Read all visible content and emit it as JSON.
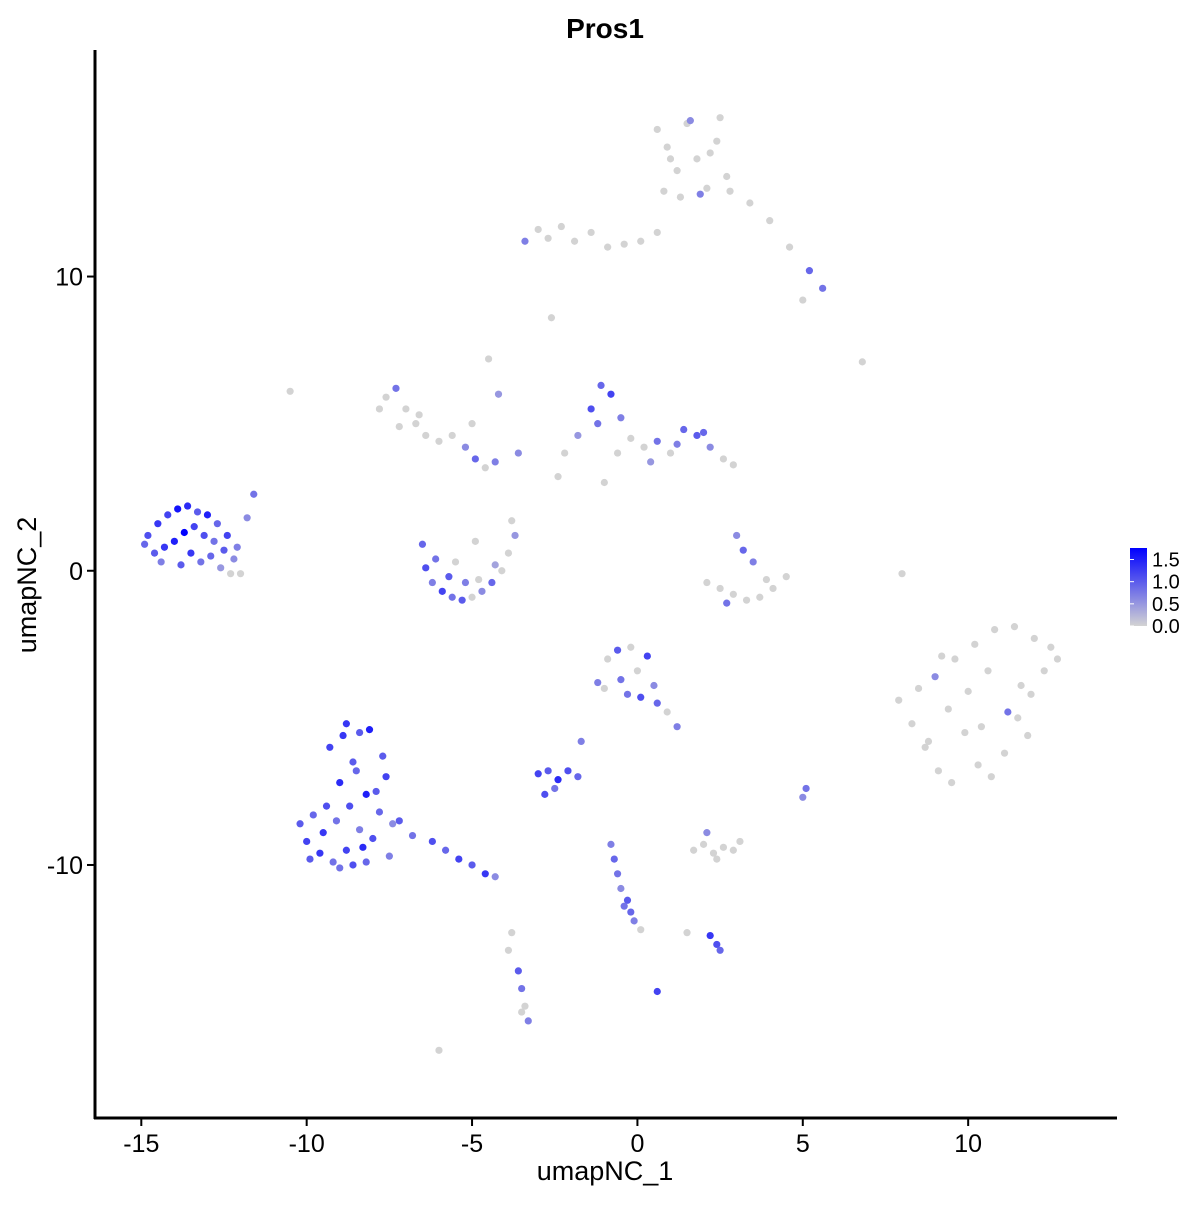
{
  "chart_data": {
    "type": "scatter",
    "title": "Pros1",
    "x_label": "umapNC_1",
    "y_label": "umapNC_2",
    "xlim": [
      -16.4,
      14.5
    ],
    "ylim": [
      -18.6,
      17.7
    ],
    "xticks": [
      -15,
      -10,
      -5,
      0,
      5,
      10
    ],
    "yticks": [
      -10,
      0,
      10
    ],
    "low_color": "#d3d3d3",
    "high_color": "#0000ff",
    "colorlim": [
      0,
      1.76
    ],
    "colorticks": [
      {
        "value": 0,
        "label": "0.0"
      },
      {
        "value": 0.5,
        "label": "0.5"
      },
      {
        "value": 1,
        "label": "1.0"
      },
      {
        "value": 1.5,
        "label": "1.5"
      }
    ],
    "x": [
      -14.8,
      -14.5,
      -14.2,
      -13.9,
      -13.6,
      -13.3,
      -13.0,
      -12.7,
      -12.4,
      -12.1,
      -14.6,
      -14.3,
      -14.0,
      -13.7,
      -13.4,
      -13.1,
      -12.8,
      -12.5,
      -12.2,
      -14.9,
      -14.4,
      -13.8,
      -13.2,
      -12.6,
      -12.0,
      -13.5,
      -12.9,
      -11.8,
      -11.6,
      -12.3,
      -10.2,
      -10.0,
      -9.8,
      -9.6,
      -9.4,
      -9.2,
      -9.0,
      -8.8,
      -8.6,
      -8.4,
      -8.2,
      -8.0,
      -7.8,
      -7.6,
      -7.4,
      -9.9,
      -9.5,
      -9.1,
      -8.7,
      -8.3,
      -7.9,
      -7.5,
      -9.3,
      -8.9,
      -8.5,
      -8.1,
      -7.7,
      -9.0,
      -8.6,
      -8.2,
      -8.8,
      -8.4,
      -7.2,
      -6.8,
      -6.2,
      -5.8,
      -5.4,
      -5.0,
      -4.6,
      -4.3,
      -6.5,
      -6.4,
      -6.2,
      -5.9,
      -5.6,
      -5.3,
      -5.0,
      -4.7,
      -4.4,
      -4.1,
      -3.9,
      -3.7,
      -3.8,
      -6.1,
      -5.7,
      -5.2,
      -4.8,
      -4.3,
      -5.5,
      -4.9,
      -7.8,
      -7.6,
      -7.3,
      -7.0,
      -6.7,
      -6.4,
      -6.0,
      -5.6,
      -5.2,
      -4.9,
      -4.6,
      -4.3,
      -5.0,
      -4.5,
      -4.2,
      -7.2,
      -6.6,
      -3.6,
      -2.2,
      -1.8,
      -1.4,
      -1.1,
      -0.8,
      -0.5,
      -0.2,
      0.2,
      0.6,
      1.0,
      1.4,
      1.8,
      2.2,
      2.6,
      2.9,
      -1.2,
      -0.6,
      0.4,
      1.2,
      2.0,
      -2.4,
      -1.0,
      0.6,
      0.9,
      1.2,
      1.5,
      1.8,
      2.1,
      2.4,
      2.7,
      0.8,
      1.3,
      1.9,
      2.5,
      1.0,
      1.6,
      2.2,
      2.8,
      3.4,
      4.0,
      4.6,
      5.2,
      5.6,
      5.0,
      -3.0,
      -2.7,
      -2.3,
      -1.9,
      -1.4,
      -0.9,
      -0.4,
      0.1,
      0.6,
      -3.4,
      7.9,
      8.3,
      8.7,
      9.1,
      9.5,
      9.9,
      10.3,
      10.7,
      11.1,
      11.5,
      11.9,
      12.3,
      12.7,
      8.5,
      9.0,
      9.6,
      10.2,
      10.8,
      11.4,
      12.0,
      12.5,
      8.8,
      9.4,
      10.0,
      10.6,
      11.2,
      11.8,
      9.2,
      10.4,
      11.6,
      2.1,
      2.5,
      2.9,
      3.3,
      3.7,
      4.1,
      4.5,
      3.0,
      3.2,
      3.5,
      2.7,
      3.9,
      -1.2,
      -0.9,
      -0.6,
      -0.3,
      0.0,
      0.3,
      0.6,
      0.9,
      1.2,
      -1.0,
      -0.5,
      0.1,
      -0.2,
      0.5,
      -3.0,
      -2.7,
      -2.4,
      -2.1,
      -1.8,
      -2.5,
      -1.7,
      -2.8,
      1.7,
      2.0,
      2.3,
      2.6,
      2.9,
      3.1,
      2.1,
      2.4,
      -0.8,
      -0.7,
      -0.6,
      -0.5,
      -0.3,
      -0.2,
      -0.1,
      0.1,
      0.6,
      -0.4,
      -3.6,
      -3.5,
      -3.4,
      -3.3,
      -3.5,
      -3.8,
      -3.9,
      -6.0,
      2.2,
      2.4,
      2.5,
      1.5,
      5.1,
      5.0,
      6.8,
      8.0,
      -10.5,
      -2.6
    ],
    "values": [
      1.2,
      1.6,
      1.9,
      2.1,
      2.2,
      2.0,
      1.9,
      1.6,
      1.2,
      0.8,
      0.6,
      0.8,
      1.0,
      1.3,
      1.5,
      1.2,
      1.0,
      0.7,
      0.4,
      0.9,
      0.3,
      0.2,
      0.3,
      0.1,
      -0.1,
      0.6,
      0.5,
      1.8,
      2.6,
      -0.1,
      -8.6,
      -9.2,
      -8.3,
      -9.6,
      -8.0,
      -9.9,
      -7.2,
      -9.5,
      -6.5,
      -8.8,
      -7.6,
      -9.1,
      -8.2,
      -7.0,
      -8.6,
      -9.8,
      -8.9,
      -8.5,
      -8.0,
      -9.4,
      -7.5,
      -9.7,
      -6.0,
      -5.6,
      -6.8,
      -5.4,
      -6.3,
      -10.1,
      -10.0,
      -9.9,
      -5.2,
      -5.5,
      -8.5,
      -9.0,
      -9.2,
      -9.5,
      -9.8,
      -10.0,
      -10.3,
      -10.4,
      0.9,
      0.1,
      -0.4,
      -0.7,
      -0.9,
      -1.0,
      -0.9,
      -0.7,
      -0.4,
      0.0,
      0.6,
      1.2,
      1.7,
      0.4,
      -0.2,
      -0.4,
      -0.3,
      0.2,
      0.3,
      1.0,
      5.5,
      5.9,
      6.2,
      5.5,
      5.0,
      4.6,
      4.4,
      4.6,
      4.2,
      3.8,
      3.5,
      3.7,
      5.0,
      7.2,
      6.0,
      4.9,
      5.3,
      4.0,
      4.0,
      4.6,
      5.5,
      6.3,
      6.0,
      5.2,
      4.5,
      4.2,
      4.4,
      4.0,
      4.8,
      4.6,
      4.2,
      3.8,
      3.6,
      5.0,
      4.0,
      3.7,
      4.3,
      4.7,
      3.2,
      3.0,
      15.0,
      14.4,
      13.6,
      15.2,
      14.0,
      13.0,
      14.6,
      13.4,
      12.9,
      12.7,
      12.8,
      15.4,
      14.0,
      15.3,
      14.2,
      12.9,
      12.5,
      11.9,
      11.0,
      10.2,
      9.6,
      9.2,
      11.6,
      11.3,
      11.7,
      11.2,
      11.5,
      11.0,
      11.1,
      11.2,
      11.5,
      11.2,
      -4.4,
      -5.2,
      -6.0,
      -6.8,
      -7.2,
      -5.5,
      -6.6,
      -7.0,
      -6.2,
      -5.0,
      -4.2,
      -3.4,
      -3.0,
      -4.0,
      -3.6,
      -3.0,
      -2.5,
      -2.0,
      -1.9,
      -2.3,
      -2.6,
      -5.8,
      -4.7,
      -4.1,
      -3.4,
      -4.8,
      -5.6,
      -2.9,
      -5.3,
      -3.9,
      -0.4,
      -0.6,
      -0.8,
      -1.0,
      -0.9,
      -0.6,
      -0.2,
      1.2,
      0.7,
      0.3,
      -1.1,
      -0.3,
      -3.8,
      -3.0,
      -2.7,
      -4.2,
      -3.4,
      -2.9,
      -4.5,
      -4.8,
      -5.3,
      -4.0,
      -3.7,
      -4.3,
      -2.6,
      -3.9,
      -6.9,
      -6.8,
      -7.1,
      -6.8,
      -7.0,
      -7.4,
      -5.8,
      -7.6,
      -9.5,
      -9.3,
      -9.6,
      -9.4,
      -9.5,
      -9.2,
      -8.9,
      -9.8,
      -9.3,
      -9.8,
      -10.3,
      -10.8,
      -11.2,
      -11.6,
      -11.9,
      -12.2,
      -14.3,
      -11.4,
      -13.6,
      -14.2,
      -14.8,
      -15.3,
      -15.0,
      -12.3,
      -12.9,
      -16.3,
      -12.4,
      -12.7,
      -12.9,
      -12.3,
      -7.4,
      -7.7,
      7.1,
      -0.1,
      6.1,
      8.6
    ],
    "expression": [
      1.1,
      1.3,
      1.2,
      1.6,
      1.4,
      1.0,
      1.5,
      0.9,
      1.2,
      0.7,
      1.0,
      1.3,
      1.5,
      1.76,
      1.2,
      1.1,
      0.8,
      1.0,
      0.6,
      0.9,
      0.7,
      1.0,
      0.8,
      0.5,
      0,
      1.3,
      0.9,
      0.6,
      0.8,
      0,
      1.0,
      1.2,
      0.9,
      1.3,
      1.1,
      0.8,
      1.4,
      1.2,
      1.0,
      0.7,
      1.5,
      1.1,
      0.9,
      1.2,
      0.6,
      1.0,
      1.3,
      0.8,
      1.1,
      1.4,
      1.0,
      0.7,
      1.2,
      1.3,
      0.9,
      1.5,
      1.0,
      0.8,
      1.1,
      0.9,
      1.3,
      1.0,
      1.0,
      0.8,
      1.1,
      0.9,
      1.2,
      1.0,
      1.3,
      0.6,
      0.9,
      1.1,
      0.7,
      1.2,
      0.8,
      1.0,
      0,
      0.6,
      0.9,
      0,
      0,
      0.5,
      0,
      0.8,
      1.0,
      0.7,
      0,
      0.4,
      0,
      0,
      0,
      0,
      0.8,
      0,
      0,
      0,
      0,
      0,
      0.6,
      0.9,
      0,
      0.7,
      0,
      0,
      0.5,
      0,
      0,
      0.6,
      0,
      0.5,
      1.1,
      0.9,
      1.2,
      0.7,
      0,
      0,
      0.8,
      0,
      0.9,
      1.0,
      0.6,
      0,
      0,
      0.8,
      0,
      0.5,
      0.7,
      0.9,
      0,
      0,
      0,
      0,
      0,
      0,
      0,
      0,
      0,
      0,
      0,
      0,
      0.7,
      0,
      0,
      0.6,
      0,
      0,
      0,
      0,
      0,
      0.9,
      0.8,
      0,
      0,
      0,
      0,
      0,
      0,
      0,
      0,
      0,
      0,
      0.7,
      0,
      0,
      0,
      0,
      0,
      0,
      0,
      0,
      0,
      0,
      0,
      0,
      0,
      0,
      0.6,
      0,
      0,
      0,
      0,
      0,
      0,
      0,
      0,
      0,
      0,
      0.8,
      0,
      0,
      0,
      0,
      0,
      0,
      0,
      0,
      0,
      0,
      0,
      0.6,
      0.9,
      0.7,
      0.8,
      0,
      0.7,
      0,
      1.0,
      0.8,
      0,
      1.2,
      0.9,
      0,
      0.7,
      0,
      0.8,
      1.1,
      0,
      0.6,
      1.2,
      1.0,
      1.4,
      1.1,
      0.9,
      0.8,
      0.7,
      1.1,
      0,
      0,
      0,
      0,
      0,
      0,
      0.6,
      0,
      0.7,
      0.9,
      0.8,
      0.6,
      1.0,
      0.9,
      0.7,
      0,
      1.2,
      0.8,
      1.0,
      0.8,
      0,
      0.7,
      0,
      0,
      0,
      0,
      1.3,
      1.1,
      0.9,
      0,
      0.8,
      0.6,
      0,
      0,
      0,
      0
    ]
  }
}
